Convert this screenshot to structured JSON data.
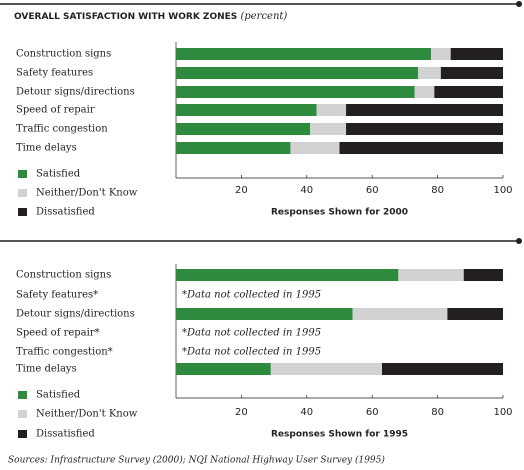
{
  "chart_data": [
    {
      "type": "bar",
      "orientation": "horizontal",
      "stacked": true,
      "title": "OVERALL SATISFACTION WITH WORK ZONES",
      "title_unit": "(percent)",
      "categories": [
        "Construction signs",
        "Safety features",
        "Detour signs/directions",
        "Speed of repair",
        "Traffic congestion",
        "Time delays"
      ],
      "series": [
        {
          "name": "Satisfied",
          "color": "#2e8b3e",
          "values": [
            78,
            74,
            73,
            43,
            41,
            35
          ]
        },
        {
          "name": "Neither/Don't Know",
          "color": "#d2d2d2",
          "values": [
            6,
            7,
            6,
            9,
            11,
            15
          ]
        },
        {
          "name": "Dissatisfied",
          "color": "#231f20",
          "values": [
            16,
            19,
            21,
            48,
            48,
            50
          ]
        }
      ],
      "xlim": [
        0,
        100
      ],
      "xticks": [
        20,
        40,
        60,
        80,
        100
      ],
      "x_label": "Responses Shown for 2000"
    },
    {
      "type": "bar",
      "orientation": "horizontal",
      "stacked": true,
      "categories": [
        "Construction signs",
        "Safety features*",
        "Detour signs/directions",
        "Speed of repair*",
        "Traffic congestion*",
        "Time delays"
      ],
      "notes": [
        null,
        "*Data not collected in 1995",
        null,
        "*Data not collected in 1995",
        "*Data not collected in 1995",
        null
      ],
      "series": [
        {
          "name": "Satisfied",
          "color": "#2e8b3e",
          "values": [
            68,
            null,
            54,
            null,
            null,
            29
          ]
        },
        {
          "name": "Neither/Don't Know",
          "color": "#d2d2d2",
          "values": [
            20,
            null,
            29,
            null,
            null,
            34
          ]
        },
        {
          "name": "Dissatisfied",
          "color": "#231f20",
          "values": [
            12,
            null,
            17,
            null,
            null,
            37
          ]
        }
      ],
      "xlim": [
        0,
        100
      ],
      "xticks": [
        20,
        40,
        60,
        80,
        100
      ],
      "x_label": "Responses Shown for 1995"
    }
  ],
  "source": "Sources: Infrastructure Survey (2000); NQI National Highway User Survey (1995)"
}
